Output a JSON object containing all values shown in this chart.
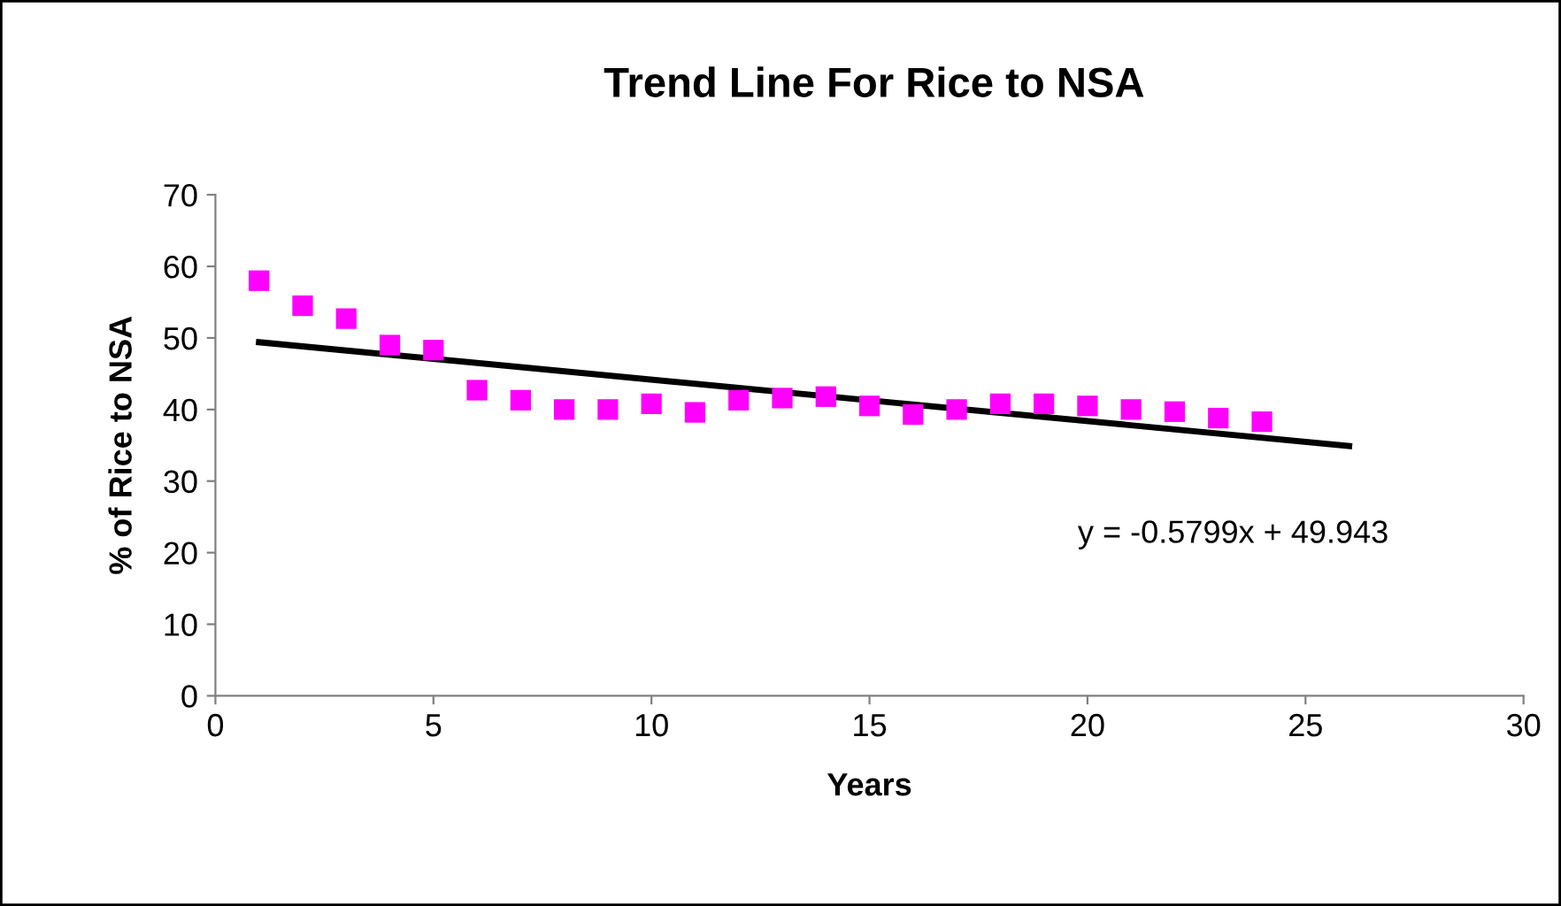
{
  "chart_data": {
    "type": "scatter",
    "title": "Trend Line For Rice to NSA",
    "xlabel": "Years",
    "ylabel": "% of Rice to NSA",
    "xlim": [
      0,
      30
    ],
    "xticks": [
      0,
      5,
      10,
      15,
      20,
      25,
      30
    ],
    "ylim": [
      0,
      70
    ],
    "yticks": [
      0,
      10,
      20,
      30,
      40,
      50,
      60,
      70
    ],
    "grid": false,
    "legend": false,
    "series": [
      {
        "marker": "square",
        "color": "#ff00ff",
        "x": [
          1,
          2,
          3,
          4,
          5,
          6,
          7,
          8,
          9,
          10,
          11,
          12,
          13,
          14,
          15,
          16,
          17,
          18,
          19,
          20,
          21,
          22,
          23,
          24
        ],
        "values": [
          58,
          54.5,
          52.7,
          49,
          48.3,
          42.7,
          41.3,
          40,
          40,
          40.8,
          39.6,
          41.3,
          41.6,
          41.8,
          40.5,
          39.3,
          40,
          40.8,
          40.8,
          40.5,
          40,
          39.7,
          38.8,
          38.3
        ]
      },
      {
        "type": "line",
        "color": "#000000",
        "x": [
          1,
          26
        ],
        "values": [
          49.4,
          34.9
        ]
      }
    ],
    "annotations": [
      "y = -0.5799x + 49.943"
    ]
  }
}
